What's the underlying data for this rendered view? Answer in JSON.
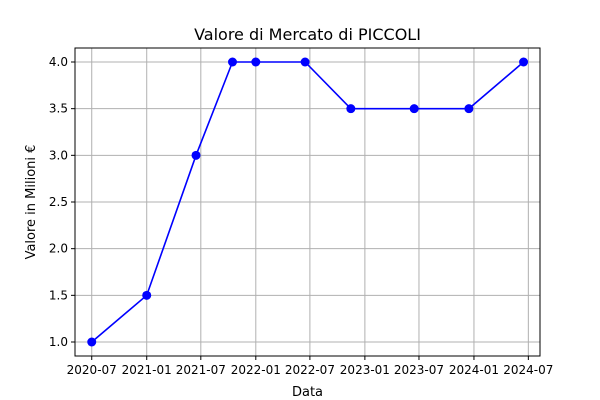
{
  "chart_data": {
    "type": "line",
    "title": "Valore di Mercato di PICCOLI",
    "xlabel": "Data",
    "ylabel": "Valore in Milioni €",
    "x": [
      "2020-07-01",
      "2021-01-01",
      "2021-06-15",
      "2021-10-15",
      "2022-01-01",
      "2022-06-15",
      "2022-11-15",
      "2023-06-15",
      "2023-12-15",
      "2024-06-15"
    ],
    "series": [
      {
        "values": [
          1.0,
          1.5,
          3.0,
          4.0,
          4.0,
          4.0,
          3.5,
          3.5,
          3.5,
          4.0
        ],
        "color": "#0000ff",
        "marker": "circle"
      }
    ],
    "xlim": [
      "2020-05-06",
      "2024-08-09"
    ],
    "ylim": [
      0.85,
      4.15
    ],
    "xticks": [
      {
        "date": "2020-07-01",
        "label": "2020-07"
      },
      {
        "date": "2021-01-01",
        "label": "2021-01"
      },
      {
        "date": "2021-07-01",
        "label": "2021-07"
      },
      {
        "date": "2022-01-01",
        "label": "2022-01"
      },
      {
        "date": "2022-07-01",
        "label": "2022-07"
      },
      {
        "date": "2023-01-01",
        "label": "2023-01"
      },
      {
        "date": "2023-07-01",
        "label": "2023-07"
      },
      {
        "date": "2024-01-01",
        "label": "2024-01"
      },
      {
        "date": "2024-07-01",
        "label": "2024-07"
      }
    ],
    "yticks": [
      1.0,
      1.5,
      2.0,
      2.5,
      3.0,
      3.5,
      4.0
    ],
    "grid": true,
    "legend": false
  }
}
